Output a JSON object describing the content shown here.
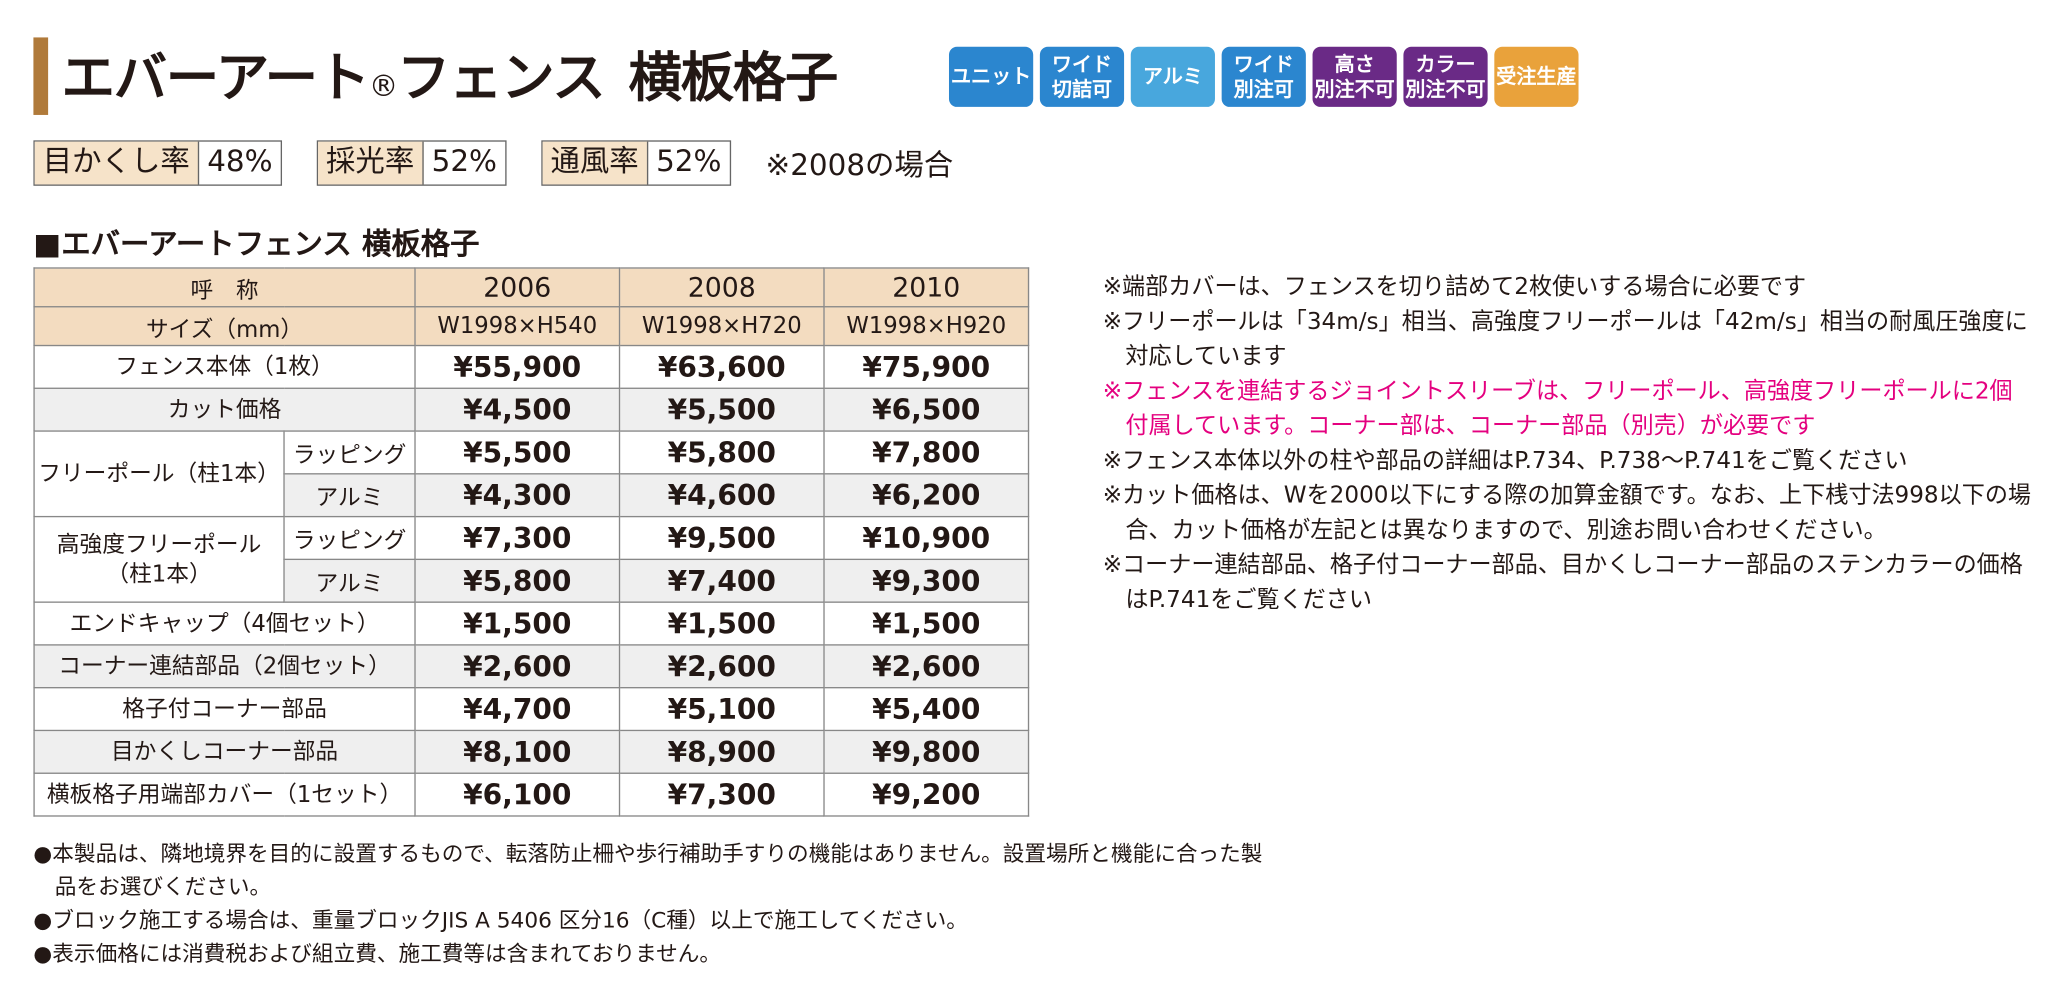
{
  "header": {
    "title_main": "エバーアート",
    "title_reg": "®",
    "title_rest": "フェンス",
    "title_sub": "横板格子",
    "badges": [
      {
        "lines": [
          "ユニット"
        ],
        "color": "#2b86cf"
      },
      {
        "lines": [
          "ワイド",
          "切詰可"
        ],
        "color": "#2b86cf"
      },
      {
        "lines": [
          "アルミ"
        ],
        "color": "#48a7dd"
      },
      {
        "lines": [
          "ワイド",
          "別注可"
        ],
        "color": "#2b86cf"
      },
      {
        "lines": [
          "高さ",
          "別注不可"
        ],
        "color": "#6a2a86"
      },
      {
        "lines": [
          "カラー",
          "別注不可"
        ],
        "color": "#6a2a86"
      },
      {
        "lines": [
          "受注生産"
        ],
        "color": "#e9a23b"
      }
    ]
  },
  "ratios": [
    {
      "label": "目かくし率",
      "value": "48%"
    },
    {
      "label": "採光率",
      "value": "52%"
    },
    {
      "label": "通風率",
      "value": "52%"
    }
  ],
  "ratio_note": "※2008の場合",
  "table": {
    "title": "■エバーアートフェンス 横板格子",
    "header": [
      [
        "呼　称",
        "2006",
        "2008",
        "2010"
      ],
      [
        "サイズ（mm）",
        "W1998×H540",
        "W1998×H720",
        "W1998×H920"
      ]
    ],
    "rows": [
      {
        "name": [
          "フェンス本体（1枚）"
        ],
        "prices": [
          "¥55,900",
          "¥63,600",
          "¥75,900"
        ]
      },
      {
        "name": [
          "カット価格"
        ],
        "prices": [
          "¥4,500",
          "¥5,500",
          "¥6,500"
        ]
      },
      {
        "name": [
          "フリーポール（柱1本）"
        ],
        "sub": [
          {
            "name": "ラッピング",
            "prices": [
              "¥5,500",
              "¥5,800",
              "¥7,800"
            ]
          },
          {
            "name": "アルミ",
            "prices": [
              "¥4,300",
              "¥4,600",
              "¥6,200"
            ]
          }
        ]
      },
      {
        "name": [
          "高強度フリーポール",
          "（柱1本）"
        ],
        "sub": [
          {
            "name": "ラッピング",
            "prices": [
              "¥7,300",
              "¥9,500",
              "¥10,900"
            ]
          },
          {
            "name": "アルミ",
            "prices": [
              "¥5,800",
              "¥7,400",
              "¥9,300"
            ]
          }
        ]
      },
      {
        "name": [
          "エンドキャップ（4個セット）"
        ],
        "prices": [
          "¥1,500",
          "¥1,500",
          "¥1,500"
        ]
      },
      {
        "name": [
          "コーナー連結部品（2個セット）"
        ],
        "prices": [
          "¥2,600",
          "¥2,600",
          "¥2,600"
        ]
      },
      {
        "name": [
          "格子付コーナー部品"
        ],
        "prices": [
          "¥4,700",
          "¥5,100",
          "¥5,400"
        ]
      },
      {
        "name": [
          "目かくしコーナー部品"
        ],
        "prices": [
          "¥8,100",
          "¥8,900",
          "¥9,800"
        ]
      },
      {
        "name": [
          "横板格子用端部カバー（1セット）"
        ],
        "prices": [
          "¥6,100",
          "¥7,300",
          "¥9,200"
        ]
      }
    ]
  },
  "side_notes": [
    {
      "text": "※端部カバーは、フェンスを切り詰めて2枚使いする場合に必要です",
      "color": "#231815"
    },
    {
      "text": "※フリーポールは「34m/s」相当、高強度フリーポールは「42m/s」相当の耐風圧強度に対応しています",
      "color": "#231815"
    },
    {
      "text": "※フェンスを連結するジョイントスリーブは、フリーポール、高強度フリーポールに2個付属しています。コーナー部は、コーナー部品（別売）が必要です",
      "color": "#e4007f"
    },
    {
      "text": "※フェンス本体以外の柱や部品の詳細はP.734、P.738～P.741をご覧ください",
      "color": "#231815"
    },
    {
      "text": "※カット価格は、Wを2000以下にする際の加算金額です。なお、上下桟寸法998以下の場合、カット価格が左記とは異なりますので、別途お問い合わせください。",
      "color": "#231815"
    },
    {
      "text": "※コーナー連結部品、格子付コーナー部品、目かくしコーナー部品のステンカラーの価格はP.741をご覧ください",
      "color": "#231815"
    }
  ],
  "bottom_notes": [
    "●本製品は、隣地境界を目的に設置するもので、転落防止柵や歩行補助手すりの機能はありません。設置場所と機能に合った製品をお選びください。",
    "●ブロック施工する場合は、重量ブロックJIS A 5406 区分16（C種）以上で施工してください。",
    "●表示価格には消費税および組立費、施工費等は含まれておりません。"
  ]
}
